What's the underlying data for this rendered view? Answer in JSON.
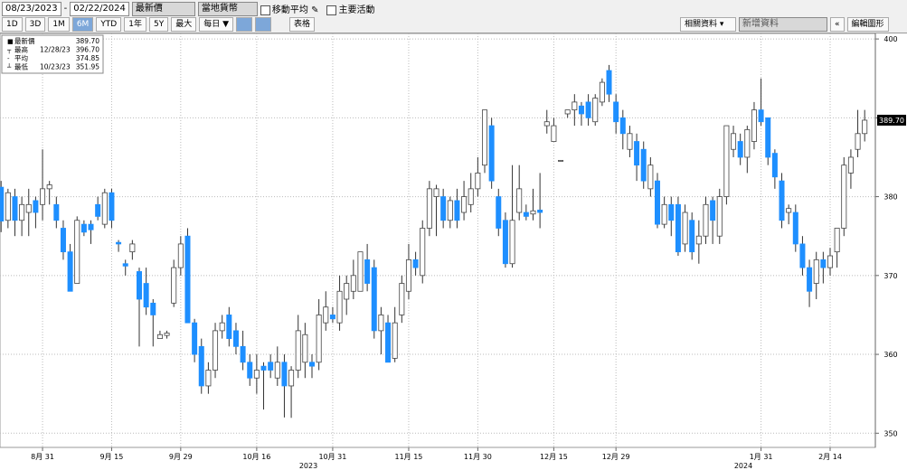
{
  "toolbar": {
    "start_date": "08/23/2023",
    "end_date": "02/22/2024",
    "price_field": "最新價",
    "currency": "當地貨幣",
    "moving_average": "移動平均",
    "key_events": "主要活動",
    "ranges": [
      "1D",
      "3D",
      "1M",
      "6M",
      "YTD",
      "1年",
      "5Y",
      "最大"
    ],
    "active_range": "6M",
    "frequency": "每日 ▼",
    "table": "表格",
    "related": "相關資料 ▾",
    "add_data": "新增資料",
    "collapse": "«",
    "edit_chart": "編輯圖形"
  },
  "chart_data": {
    "type": "candlestick",
    "legend": [
      {
        "name": "最新價",
        "value": "389.70"
      },
      {
        "name": "最高",
        "date": "12/28/23",
        "value": "396.70"
      },
      {
        "name": "平均",
        "value": "374.85"
      },
      {
        "name": "最低",
        "date": "10/23/23",
        "value": "351.95"
      }
    ],
    "categories": [
      null,
      null,
      null,
      null,
      null,
      null,
      "8月 31",
      null,
      null,
      null,
      null,
      null,
      null,
      null,
      null,
      null,
      "9月 15",
      null,
      null,
      null,
      null,
      null,
      null,
      null,
      null,
      null,
      "9月 29",
      null,
      null,
      null,
      null,
      null,
      null,
      null,
      null,
      null,
      null,
      "10月 16",
      null,
      null,
      null,
      null,
      null,
      null,
      null,
      null,
      null,
      null,
      "10月 31",
      null,
      null,
      null,
      null,
      null,
      null,
      null,
      null,
      null,
      null,
      "11月 15",
      null,
      null,
      null,
      null,
      null,
      null,
      null,
      null,
      null,
      "11月 30",
      null,
      null,
      null,
      null,
      null,
      null,
      null,
      null,
      null,
      null,
      "12月 15",
      null,
      null,
      null,
      null,
      null,
      null,
      null,
      null,
      "12月 29",
      null,
      null,
      null,
      null,
      null,
      null,
      null,
      null,
      null,
      null,
      null,
      null,
      null,
      null,
      null,
      null,
      null,
      null,
      null,
      null,
      "1月 31",
      null,
      null,
      null,
      null,
      null,
      null,
      null,
      null,
      null,
      "2月 14",
      null,
      null,
      null,
      null,
      null
    ],
    "year_labels": [
      "2023",
      "2024"
    ],
    "open": [
      381.2,
      377,
      380,
      377,
      378,
      379.5,
      379,
      381,
      379,
      376,
      373,
      369,
      376.5,
      376.5,
      379,
      376.5,
      380.5,
      374.2,
      371.5,
      373,
      370.5,
      369,
      366.5,
      362,
      362.4,
      366.5,
      371,
      375,
      364,
      361,
      356,
      358,
      363,
      365,
      363,
      361,
      359,
      357,
      358.5,
      359,
      357,
      359,
      356,
      358,
      359,
      359,
      359,
      364,
      365,
      364,
      367,
      368,
      368,
      372,
      371,
      363,
      364,
      359.5,
      365,
      368,
      372,
      370,
      376,
      380,
      380,
      377,
      379.5,
      378,
      379,
      381,
      384,
      389,
      380,
      377,
      371.5,
      378,
      378,
      377.8,
      378.3,
      389,
      387,
      384.5,
      390.5,
      391,
      391.5,
      392,
      389.5,
      392,
      396,
      392,
      390,
      386,
      387,
      386,
      381,
      382,
      376.5,
      379,
      379,
      374,
      377,
      374,
      375,
      379.5,
      375,
      380,
      386,
      387,
      385,
      387,
      391,
      390,
      385.5,
      382,
      378,
      378,
      374,
      371,
      369,
      372,
      371,
      373,
      376,
      383,
      386,
      388
    ],
    "high": [
      382,
      381,
      381,
      380,
      381,
      380,
      386,
      382,
      380,
      377,
      374,
      377.5,
      377,
      377,
      380,
      381,
      381,
      374.5,
      372,
      374.5,
      371,
      371,
      367,
      363,
      363,
      372,
      375,
      376,
      364.5,
      362,
      359,
      364,
      365,
      366,
      364,
      363,
      360,
      360,
      359,
      360,
      361,
      360,
      358.5,
      365,
      364,
      360,
      367,
      368,
      366,
      370,
      370,
      372,
      373,
      374,
      372,
      366,
      365,
      366,
      370,
      374,
      373,
      377,
      382,
      381.5,
      381,
      380,
      381,
      382,
      383,
      385,
      391,
      390,
      381,
      378,
      384,
      384,
      379,
      381,
      383,
      391,
      390,
      384.6,
      391,
      393,
      392,
      393,
      393,
      395,
      396.7,
      393,
      391,
      389,
      388,
      387,
      385,
      383,
      380,
      380,
      380,
      379,
      378,
      377,
      380,
      380,
      381,
      389,
      389,
      388,
      389,
      392,
      395,
      390,
      386,
      383,
      379,
      379,
      375,
      372,
      373,
      373,
      373.5,
      376,
      385,
      386,
      391,
      391
    ],
    "low": [
      375.5,
      376,
      375,
      375,
      375,
      376,
      377,
      379,
      376,
      372,
      368,
      369,
      375,
      374,
      377,
      376,
      376,
      373,
      370,
      372,
      361,
      365,
      361,
      362,
      362,
      366,
      370,
      364,
      359,
      355,
      355,
      357,
      362,
      361,
      360,
      358,
      356,
      355,
      353,
      357,
      356,
      352,
      351.95,
      357,
      357,
      357,
      358,
      363,
      364,
      363,
      365,
      367,
      368,
      368,
      362,
      360,
      359,
      359,
      364,
      367,
      370,
      369,
      375,
      375,
      376,
      376,
      376,
      377,
      378,
      380,
      383,
      381,
      375,
      371,
      371,
      377,
      377,
      377,
      376,
      388,
      387,
      384.5,
      390,
      389,
      389,
      389,
      389,
      391.5,
      392,
      388,
      386,
      385,
      382,
      381,
      380,
      376,
      376,
      375,
      372.5,
      373,
      372,
      371.5,
      374,
      374,
      374,
      379,
      385,
      384,
      383,
      386,
      389,
      384,
      381,
      376,
      376.5,
      373,
      370,
      366,
      367,
      369,
      370,
      371,
      375,
      381,
      385,
      387
    ],
    "close": [
      376.9,
      380.5,
      377,
      379,
      379,
      378,
      381,
      381.5,
      377,
      373,
      368,
      377,
      375.5,
      375.8,
      377.5,
      380.5,
      377,
      374,
      371.2,
      374,
      367,
      366,
      365,
      362.5,
      362.7,
      371,
      374,
      364,
      360,
      356,
      358,
      363,
      364,
      362,
      361,
      359,
      357,
      358,
      358,
      358,
      359,
      356,
      358,
      363,
      362.5,
      358.5,
      365,
      366,
      364.5,
      368,
      369,
      370,
      373,
      369,
      363,
      365,
      359,
      364,
      369,
      372,
      371,
      376,
      381,
      381,
      377,
      379.5,
      377,
      380,
      381,
      383,
      391,
      382,
      376,
      371.5,
      377,
      381,
      377.5,
      378.2,
      378,
      389.5,
      389,
      384.6,
      391,
      392,
      390.5,
      390,
      392.5,
      394.5,
      393,
      389.5,
      388,
      388,
      384,
      382,
      384,
      376.5,
      379,
      377,
      373,
      378,
      373,
      375,
      379,
      377,
      380,
      389,
      388,
      385,
      388.5,
      391,
      389.5,
      385,
      382.5,
      377,
      378.5,
      374,
      371,
      368,
      372,
      371,
      372.5,
      376,
      384,
      385,
      388,
      389.7
    ],
    "up_color": "#ffffff",
    "down_color": "#1e8fff",
    "wick_color": "#333333",
    "ylim": [
      348.2,
      400.7
    ],
    "yticks": [
      350,
      360,
      370,
      380,
      390,
      400
    ],
    "grid": true,
    "y_axis_side": "right"
  }
}
